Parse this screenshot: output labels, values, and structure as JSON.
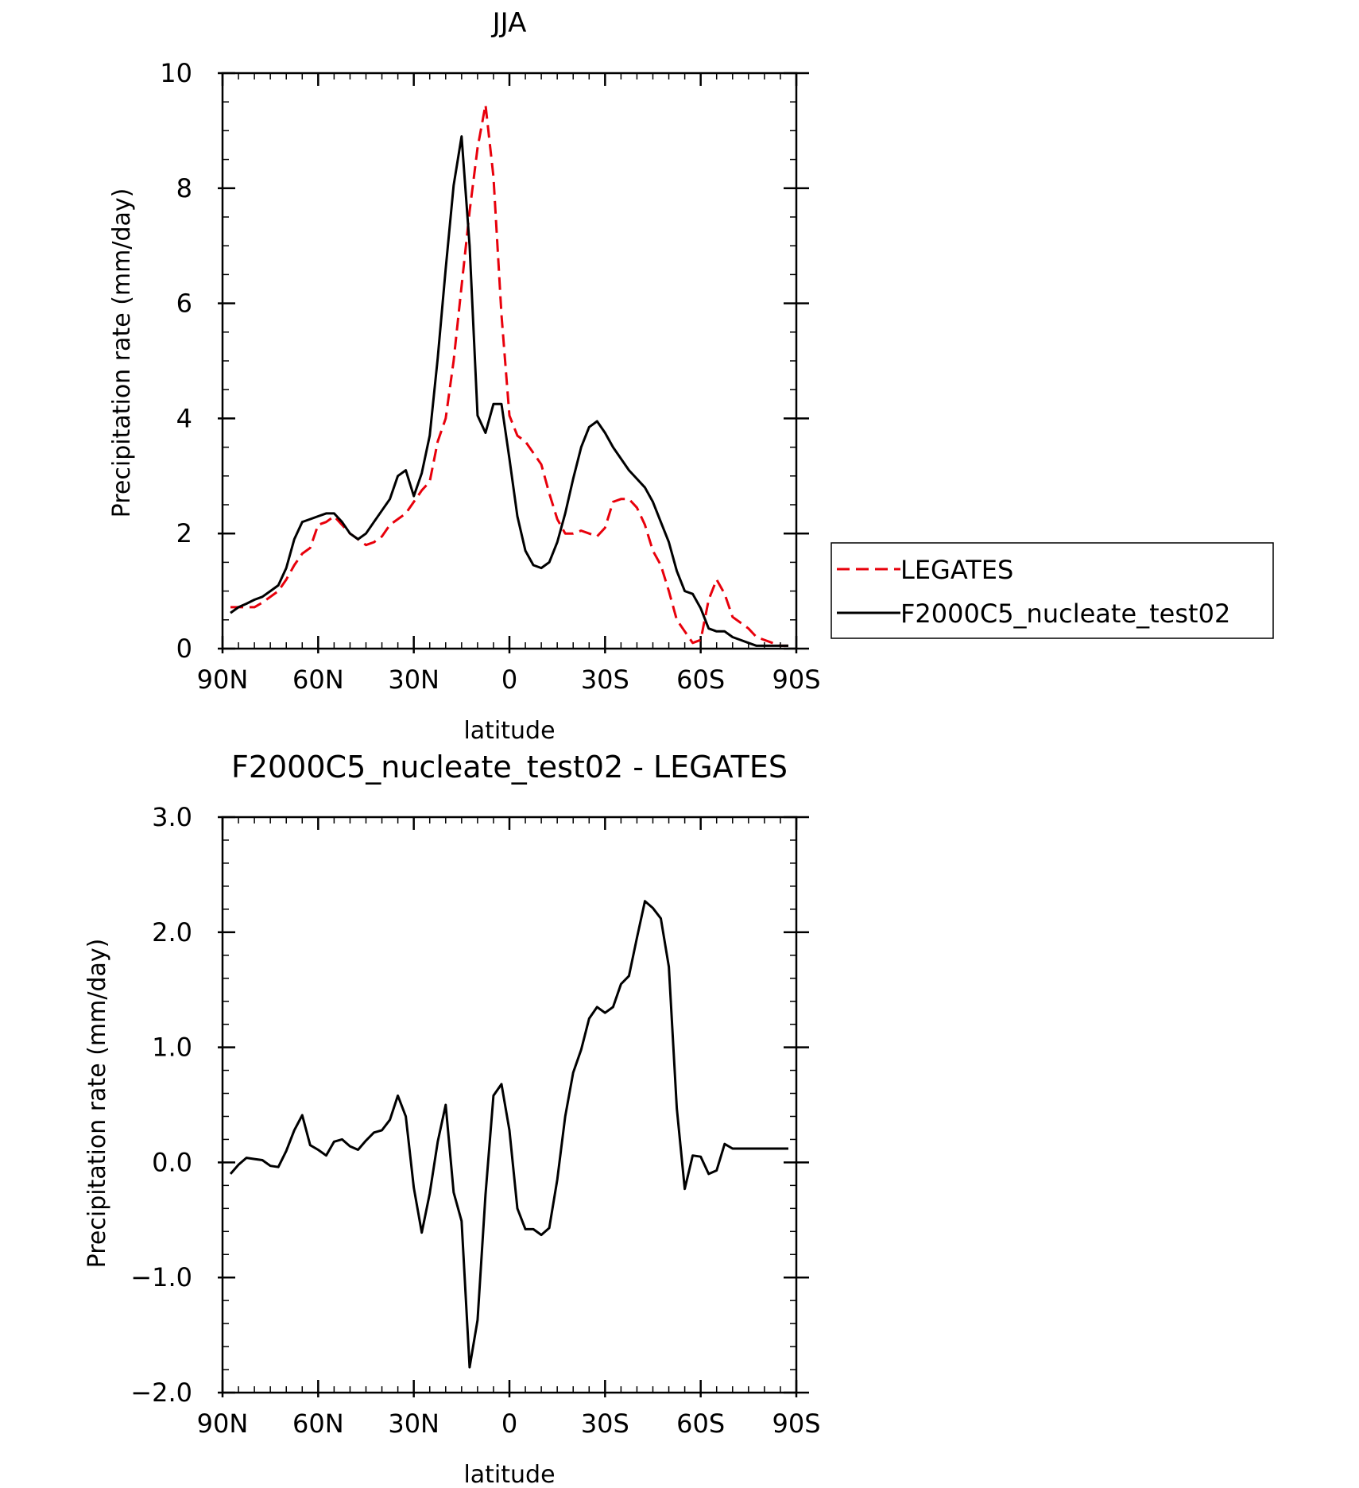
{
  "chart_data": [
    {
      "type": "line",
      "title": "JJA",
      "xlabel": "latitude",
      "ylabel": "Precipitation rate (mm/day)",
      "xlim": [
        90,
        -90
      ],
      "ylim": [
        0,
        10
      ],
      "x_ticks": [
        {
          "value": 90,
          "label": "90N"
        },
        {
          "value": 60,
          "label": "60N"
        },
        {
          "value": 30,
          "label": "30N"
        },
        {
          "value": 0,
          "label": "0"
        },
        {
          "value": -30,
          "label": "30S"
        },
        {
          "value": -60,
          "label": "60S"
        },
        {
          "value": -90,
          "label": "90S"
        }
      ],
      "y_ticks": [
        {
          "value": 0,
          "label": "0"
        },
        {
          "value": 2,
          "label": "2"
        },
        {
          "value": 4,
          "label": "4"
        },
        {
          "value": 6,
          "label": "6"
        },
        {
          "value": 8,
          "label": "8"
        },
        {
          "value": 10,
          "label": "10"
        }
      ],
      "legend_position": "right",
      "series": [
        {
          "name": "LEGATES",
          "color": "#e8000b",
          "dash": "dashed",
          "x": [
            87.5,
            85,
            82.5,
            80,
            77.5,
            75,
            72.5,
            70,
            67.5,
            65,
            62.5,
            60,
            57.5,
            55,
            52.5,
            50,
            47.5,
            45,
            42.5,
            40,
            37.5,
            35,
            32.5,
            30,
            27.5,
            25,
            22.5,
            20,
            17.5,
            15,
            12.5,
            10,
            7.5,
            5,
            2.5,
            0,
            -2.5,
            -5,
            -7.5,
            -10,
            -12.5,
            -15,
            -17.5,
            -20,
            -22.5,
            -25,
            -27.5,
            -30,
            -32.5,
            -35,
            -37.5,
            -40,
            -42.5,
            -45,
            -47.5,
            -50,
            -52.5,
            -55,
            -57.5,
            -60,
            -62.5,
            -65,
            -67.5,
            -70,
            -72.5,
            -75,
            -77.5,
            -80,
            -82.5,
            -85,
            -87.5
          ],
          "y": [
            0.72,
            0.72,
            0.72,
            0.72,
            0.8,
            0.9,
            1.0,
            1.2,
            1.45,
            1.65,
            1.75,
            2.15,
            2.2,
            2.3,
            2.15,
            2.0,
            1.9,
            1.8,
            1.85,
            1.95,
            2.15,
            2.25,
            2.35,
            2.55,
            2.75,
            2.9,
            3.6,
            4.0,
            5.0,
            6.3,
            7.6,
            8.7,
            9.45,
            8.2,
            5.8,
            4.05,
            3.7,
            3.6,
            3.4,
            3.2,
            2.7,
            2.25,
            2.0,
            2.0,
            2.05,
            2.0,
            1.95,
            2.1,
            2.55,
            2.6,
            2.6,
            2.45,
            2.15,
            1.7,
            1.45,
            1.0,
            0.5,
            0.3,
            0.1,
            0.15,
            0.85,
            1.2,
            0.95,
            0.55,
            0.45,
            0.35,
            0.2,
            0.15,
            0.1,
            0.05,
            0.05
          ]
        },
        {
          "name": "F2000C5_nucleate_test02",
          "color": "#000000",
          "dash": "solid",
          "x": [
            87.5,
            85,
            82.5,
            80,
            77.5,
            75,
            72.5,
            70,
            67.5,
            65,
            62.5,
            60,
            57.5,
            55,
            52.5,
            50,
            47.5,
            45,
            42.5,
            40,
            37.5,
            35,
            32.5,
            30,
            27.5,
            25,
            22.5,
            20,
            17.5,
            15,
            12.5,
            10,
            7.5,
            5,
            2.5,
            0,
            -2.5,
            -5,
            -7.5,
            -10,
            -12.5,
            -15,
            -17.5,
            -20,
            -22.5,
            -25,
            -27.5,
            -30,
            -32.5,
            -35,
            -37.5,
            -40,
            -42.5,
            -45,
            -47.5,
            -50,
            -52.5,
            -55,
            -57.5,
            -60,
            -62.5,
            -65,
            -67.5,
            -70,
            -72.5,
            -75,
            -77.5,
            -80,
            -82.5,
            -85,
            -87.5
          ],
          "y": [
            0.62,
            0.72,
            0.78,
            0.85,
            0.9,
            1.0,
            1.1,
            1.4,
            1.9,
            2.2,
            2.25,
            2.3,
            2.35,
            2.35,
            2.2,
            2.0,
            1.9,
            2.0,
            2.2,
            2.4,
            2.6,
            3.0,
            3.1,
            2.65,
            3.05,
            3.7,
            5.05,
            6.6,
            8.05,
            8.9,
            7.0,
            4.05,
            3.75,
            4.25,
            4.25,
            3.3,
            2.3,
            1.7,
            1.45,
            1.4,
            1.5,
            1.85,
            2.35,
            2.95,
            3.5,
            3.85,
            3.95,
            3.75,
            3.5,
            3.3,
            3.1,
            2.95,
            2.8,
            2.55,
            2.2,
            1.85,
            1.35,
            1.0,
            0.95,
            0.7,
            0.35,
            0.3,
            0.3,
            0.2,
            0.15,
            0.1,
            0.05,
            0.05,
            0.05,
            0.05,
            0.05
          ]
        }
      ]
    },
    {
      "type": "line",
      "title": "F2000C5_nucleate_test02 - LEGATES",
      "xlabel": "latitude",
      "ylabel": "Precipitation rate (mm/day)",
      "xlim": [
        90,
        -90
      ],
      "ylim": [
        -2.0,
        3.0
      ],
      "x_ticks": [
        {
          "value": 90,
          "label": "90N"
        },
        {
          "value": 60,
          "label": "60N"
        },
        {
          "value": 30,
          "label": "30N"
        },
        {
          "value": 0,
          "label": "0"
        },
        {
          "value": -30,
          "label": "30S"
        },
        {
          "value": -60,
          "label": "60S"
        },
        {
          "value": -90,
          "label": "90S"
        }
      ],
      "y_ticks": [
        {
          "value": -2.0,
          "label": "−2.0"
        },
        {
          "value": -1.0,
          "label": "−1.0"
        },
        {
          "value": 0.0,
          "label": "0.0"
        },
        {
          "value": 1.0,
          "label": "1.0"
        },
        {
          "value": 2.0,
          "label": "2.0"
        },
        {
          "value": 3.0,
          "label": "3.0"
        }
      ],
      "series": [
        {
          "color": "#000000",
          "dash": "solid",
          "x": [
            87.5,
            85,
            82.5,
            80,
            77.5,
            75,
            72.5,
            70,
            67.5,
            65,
            62.5,
            60,
            57.5,
            55,
            52.5,
            50,
            47.5,
            45,
            42.5,
            40,
            37.5,
            35,
            32.5,
            30,
            27.5,
            25,
            22.5,
            20,
            17.5,
            15,
            12.5,
            10,
            7.5,
            5,
            2.5,
            0,
            -2.5,
            -5,
            -7.5,
            -10,
            -12.5,
            -15,
            -17.5,
            -20,
            -22.5,
            -25,
            -27.5,
            -30,
            -32.5,
            -35,
            -37.5,
            -40,
            -42.5,
            -45,
            -47.5,
            -50,
            -52.5,
            -55,
            -57.5,
            -60,
            -62.5,
            -65,
            -67.5,
            -70,
            -72.5,
            -75,
            -77.5,
            -80,
            -82.5,
            -85,
            -87.5
          ],
          "y": [
            -0.1,
            -0.02,
            0.04,
            0.03,
            0.02,
            -0.03,
            -0.04,
            0.1,
            0.28,
            0.41,
            0.15,
            0.11,
            0.06,
            0.18,
            0.2,
            0.14,
            0.11,
            0.19,
            0.26,
            0.28,
            0.37,
            0.58,
            0.4,
            -0.22,
            -0.61,
            -0.27,
            0.18,
            0.5,
            -0.26,
            -0.51,
            -1.78,
            -1.37,
            -0.28,
            0.58,
            0.68,
            0.28,
            -0.4,
            -0.58,
            -0.58,
            -0.63,
            -0.57,
            -0.15,
            0.4,
            0.78,
            0.98,
            1.25,
            1.35,
            1.3,
            1.35,
            1.55,
            1.62,
            1.95,
            2.27,
            2.21,
            2.12,
            1.7,
            0.47,
            -0.23,
            0.06,
            0.05,
            -0.1,
            -0.07,
            0.16,
            0.12,
            0.12,
            0.12,
            0.12,
            0.12,
            0.12,
            0.12,
            0.12
          ]
        }
      ]
    }
  ]
}
